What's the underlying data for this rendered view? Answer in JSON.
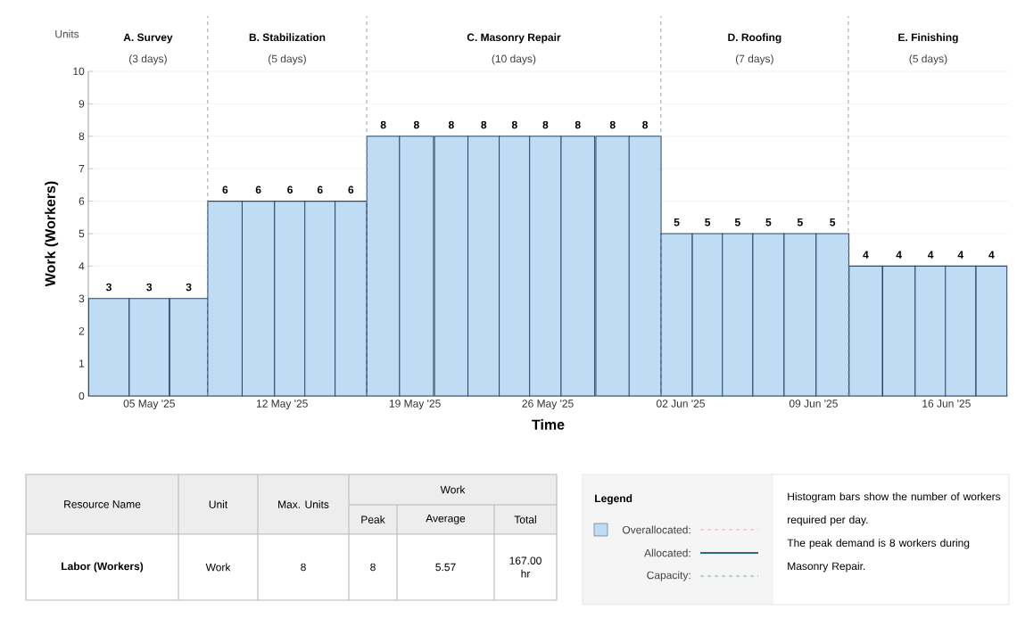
{
  "chart_data": {
    "type": "bar",
    "xlabel": "Time",
    "ylabel": "Work (Workers)",
    "x": [
      "2025-05-02T21:00",
      "2025-05-05T00:00",
      "2025-05-07T02:00",
      "2025-05-09T00:00",
      "2025-05-10T18:00",
      "2025-05-12T10:00",
      "2025-05-14T00:00",
      "2025-05-15T15:00",
      "2025-05-17T08:00",
      "2025-05-19T02:00",
      "2025-05-20T22:00",
      "2025-05-22T15:00",
      "2025-05-24T06:00",
      "2025-05-25T21:00",
      "2025-05-27T14:00",
      "2025-05-29T10:00",
      "2025-05-31T03:00",
      "2025-06-01T19:00",
      "2025-06-03T10:00",
      "2025-06-05T00:00",
      "2025-06-06T15:00",
      "2025-06-08T07:00",
      "2025-06-10T00:00",
      "2025-06-11T18:00",
      "2025-06-13T12:00",
      "2025-06-15T04:00",
      "2025-06-16T18:00",
      "2025-06-18T09:00"
    ],
    "values": [
      3,
      3,
      3,
      6,
      6,
      6,
      6,
      6,
      8,
      8,
      8,
      8,
      8,
      8,
      8,
      8,
      8,
      5,
      5,
      5,
      5,
      5,
      5,
      4,
      4,
      4,
      4,
      4
    ],
    "color": "#bfdcf5",
    "data_labels": true,
    "grid": "y",
    "xlim": [
      "2025-05-01T19:00",
      "2025-06-19T06:00"
    ],
    "xticks": [
      {
        "value": "2025-05-05",
        "label": "05 May '25"
      },
      {
        "value": "2025-05-12",
        "label": "12 May '25"
      },
      {
        "value": "2025-05-19",
        "label": "19 May '25"
      },
      {
        "value": "2025-05-26",
        "label": "26 May '25"
      },
      {
        "value": "2025-06-02",
        "label": "02 Jun '25"
      },
      {
        "value": "2025-06-09",
        "label": "09 Jun '25"
      },
      {
        "value": "2025-06-16",
        "label": "16 Jun '25"
      }
    ],
    "ylim": [
      0,
      10
    ],
    "yticks": [
      0,
      1,
      2,
      3,
      4,
      5,
      6,
      7,
      8,
      9,
      10
    ],
    "ref_lines": [
      {
        "axis": "x",
        "value": "2025-05-08T02:00",
        "color": "#8c9ab0",
        "line_style": "dashed"
      },
      {
        "axis": "x",
        "value": "2025-05-16T11:00",
        "color": "#8c9ab0",
        "line_style": "dashed"
      },
      {
        "axis": "x",
        "value": "2025-05-31T23:00",
        "color": "#8c9ab0",
        "line_style": "dashed"
      },
      {
        "axis": "x",
        "value": "2025-06-10T20:00",
        "color": "#8c9ab0",
        "line_style": "dashed"
      }
    ],
    "annotations": [
      "Units",
      "A. Survey",
      "(3 days)",
      "B. Stabilization",
      "(5 days)",
      "C. Masonry Repair",
      "(10 days)",
      "D. Roofing",
      "(7 days)",
      "E. Finishing",
      "(5 days)",
      "Resource Name",
      "Unit",
      "Max. Units",
      "Work",
      "Peak",
      "Average",
      "Total",
      "Labor (Workers)",
      "Work",
      "8",
      "8",
      "5.57",
      "167.00 hr",
      "Legend",
      "Overallocated:",
      "Allocated:",
      "Capacity:",
      "Histogram bars show the number of workers required per day.",
      "The peak demand is 8 workers during Masonry Repair."
    ]
  }
}
